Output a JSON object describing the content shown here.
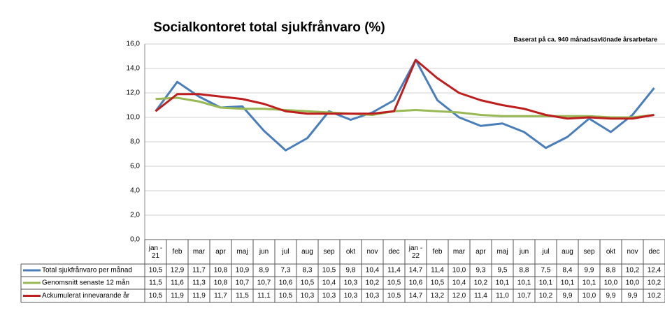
{
  "chart_data": {
    "type": "line",
    "title": "Socialkontoret total sjukfrånvaro (%)",
    "subtitle": "Baserat på ca. 940 månadsavlönade årsarbetare",
    "categories": [
      "jan - 21",
      "feb",
      "mar",
      "apr",
      "maj",
      "jun",
      "jul",
      "aug",
      "sep",
      "okt",
      "nov",
      "dec",
      "jan - 22",
      "feb",
      "mar",
      "apr",
      "maj",
      "jun",
      "jul",
      "aug",
      "sep",
      "okt",
      "nov",
      "dec"
    ],
    "series": [
      {
        "name": "Total sjukfrånvaro per månad",
        "color": "#4a7ebb",
        "values": [
          10.5,
          12.9,
          11.7,
          10.8,
          10.9,
          8.9,
          7.3,
          8.3,
          10.5,
          9.8,
          10.4,
          11.4,
          14.7,
          11.4,
          10.0,
          9.3,
          9.5,
          8.8,
          7.5,
          8.4,
          9.9,
          8.8,
          10.2,
          12.4
        ],
        "value_labels": [
          "10,5",
          "12,9",
          "11,7",
          "10,8",
          "10,9",
          "8,9",
          "7,3",
          "8,3",
          "10,5",
          "9,8",
          "10,4",
          "11,4",
          "14,7",
          "11,4",
          "10,0",
          "9,3",
          "9,5",
          "8,8",
          "7,5",
          "8,4",
          "9,9",
          "8,8",
          "10,2",
          "12,4"
        ]
      },
      {
        "name": "Genomsnitt senaste 12 mån",
        "color": "#98b954",
        "values": [
          11.5,
          11.6,
          11.3,
          10.8,
          10.7,
          10.7,
          10.6,
          10.5,
          10.4,
          10.3,
          10.2,
          10.5,
          10.6,
          10.5,
          10.4,
          10.2,
          10.1,
          10.1,
          10.1,
          10.1,
          10.1,
          10.0,
          10.0,
          10.2
        ],
        "value_labels": [
          "11,5",
          "11,6",
          "11,3",
          "10,8",
          "10,7",
          "10,7",
          "10,6",
          "10,5",
          "10,4",
          "10,3",
          "10,2",
          "10,5",
          "10,6",
          "10,5",
          "10,4",
          "10,2",
          "10,1",
          "10,1",
          "10,1",
          "10,1",
          "10,1",
          "10,0",
          "10,0",
          "10,2"
        ]
      },
      {
        "name": "Ackumulerat innevarande år",
        "color": "#be1e1e",
        "values": [
          10.5,
          11.9,
          11.9,
          11.7,
          11.5,
          11.1,
          10.5,
          10.3,
          10.3,
          10.3,
          10.3,
          10.5,
          14.7,
          13.2,
          12.0,
          11.4,
          11.0,
          10.7,
          10.2,
          9.9,
          10.0,
          9.9,
          9.9,
          10.2
        ],
        "value_labels": [
          "10,5",
          "11,9",
          "11,9",
          "11,7",
          "11,5",
          "11,1",
          "10,5",
          "10,3",
          "10,3",
          "10,3",
          "10,3",
          "10,5",
          "14,7",
          "13,2",
          "12,0",
          "11,4",
          "11,0",
          "10,7",
          "10,2",
          "9,9",
          "10,0",
          "9,9",
          "9,9",
          "10,2"
        ]
      }
    ],
    "ylim": [
      0,
      16
    ],
    "yticks": [
      {
        "value": 0,
        "label": "0,0"
      },
      {
        "value": 2,
        "label": "2,0"
      },
      {
        "value": 4,
        "label": "4,0"
      },
      {
        "value": 6,
        "label": "6,0"
      },
      {
        "value": 8,
        "label": "8,0"
      },
      {
        "value": 10,
        "label": "10,0"
      },
      {
        "value": 12,
        "label": "12,0"
      },
      {
        "value": 14,
        "label": "14,0"
      },
      {
        "value": 16,
        "label": "16,0"
      }
    ],
    "grid": true
  }
}
